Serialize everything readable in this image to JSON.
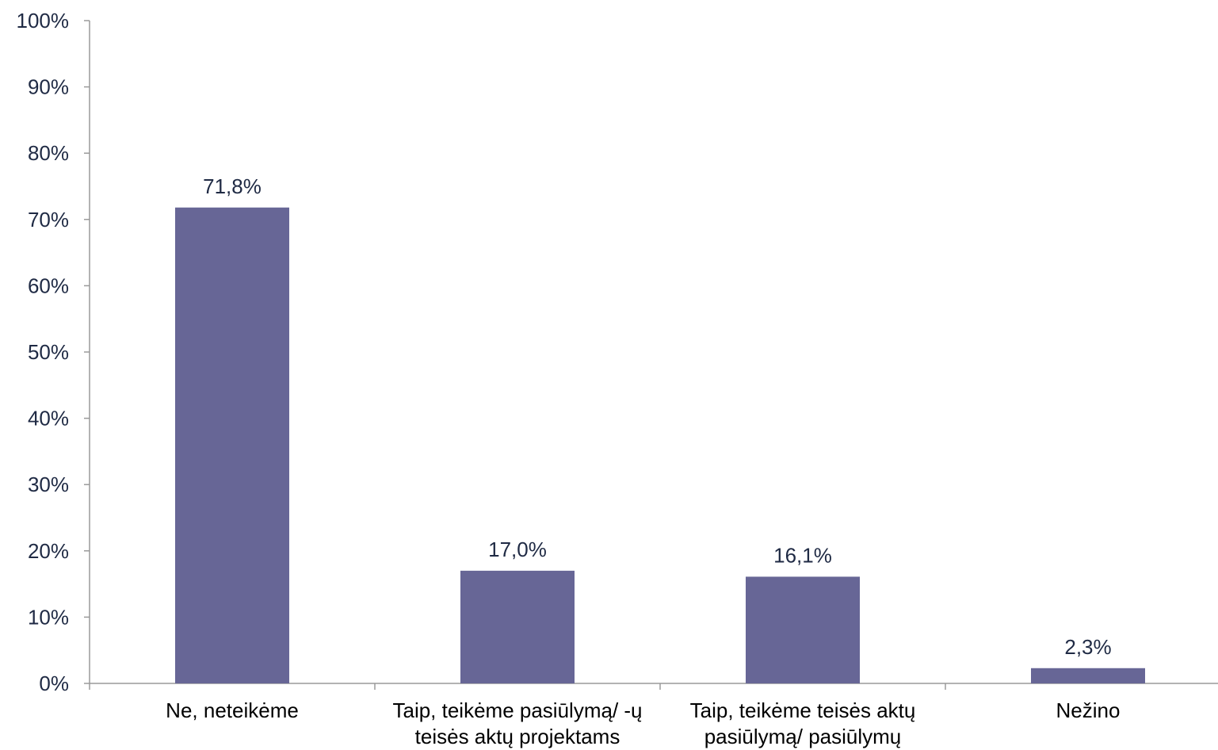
{
  "chart_data": {
    "type": "bar",
    "categories": [
      [
        "Ne, neteikėme"
      ],
      [
        "Taip, teikėme pasiūlymą/ -ų",
        "teisės aktų projektams"
      ],
      [
        "Taip, teikėme teisės aktų",
        "pasiūlymą/ pasiūlymų"
      ],
      [
        "Nežino"
      ]
    ],
    "values": [
      71.8,
      17.0,
      16.1,
      2.3
    ],
    "data_labels": [
      "71,8%",
      "17,0%",
      "16,1%",
      "2,3%"
    ],
    "ylim": [
      0,
      100
    ],
    "yticks": [
      0,
      10,
      20,
      30,
      40,
      50,
      60,
      70,
      80,
      90,
      100
    ],
    "ytick_labels": [
      "0%",
      "10%",
      "20%",
      "30%",
      "40%",
      "50%",
      "60%",
      "70%",
      "80%",
      "90%",
      "100%"
    ],
    "grid": false,
    "legend": "none",
    "colors": {
      "bar": "#676696",
      "axis": "#9a9a9a"
    }
  }
}
